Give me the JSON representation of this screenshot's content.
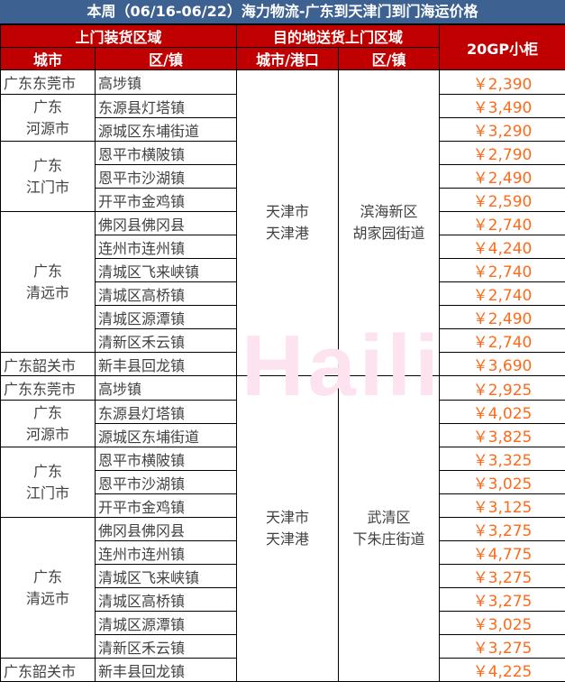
{
  "title": "本周（06/16-06/22）海力物流-广东到天津门到门海运价格",
  "headers": {
    "pickup": "上门装货区域",
    "delivery": "目的地送货上门区域",
    "price": "20GP小柜",
    "city": "城市",
    "district": "区/镇",
    "dest_city": "城市/港口",
    "dest_district": "区/镇"
  },
  "watermark": "Haili",
  "sections": [
    {
      "dest_city": "天津市\n天津港",
      "dest_district": "滨海新区\n胡家园街道",
      "groups": [
        {
          "city": "广东东莞市",
          "rows": [
            {
              "district": "高埗镇",
              "price": "￥2,390"
            }
          ]
        },
        {
          "city": "广东\n河源市",
          "rows": [
            {
              "district": "东源县灯塔镇",
              "price": "￥3,490"
            },
            {
              "district": "源城区东埔街道",
              "price": "￥3,290"
            }
          ]
        },
        {
          "city": "广东\n江门市",
          "rows": [
            {
              "district": "恩平市横陂镇",
              "price": "￥2,790"
            },
            {
              "district": "恩平市沙湖镇",
              "price": "￥2,490"
            },
            {
              "district": "开平市金鸡镇",
              "price": "￥2,590"
            }
          ]
        },
        {
          "city": "广东\n清远市",
          "rows": [
            {
              "district": "佛冈县佛冈县",
              "price": "￥2,740"
            },
            {
              "district": "连州市连州镇",
              "price": "￥4,240"
            },
            {
              "district": "清城区飞来峡镇",
              "price": "￥2,740"
            },
            {
              "district": "清城区高桥镇",
              "price": "￥2,740"
            },
            {
              "district": "清城区源潭镇",
              "price": "￥2,490"
            },
            {
              "district": "清新区禾云镇",
              "price": "￥2,740"
            }
          ]
        },
        {
          "city": "广东韶关市",
          "rows": [
            {
              "district": "新丰县回龙镇",
              "price": "￥3,690"
            }
          ]
        }
      ]
    },
    {
      "dest_city": "天津市\n天津港",
      "dest_district": "武清区\n下朱庄街道",
      "groups": [
        {
          "city": "广东东莞市",
          "rows": [
            {
              "district": "高埗镇",
              "price": "￥2,925"
            }
          ]
        },
        {
          "city": "广东\n河源市",
          "rows": [
            {
              "district": "东源县灯塔镇",
              "price": "￥4,025"
            },
            {
              "district": "源城区东埔街道",
              "price": "￥3,825"
            }
          ]
        },
        {
          "city": "广东\n江门市",
          "rows": [
            {
              "district": "恩平市横陂镇",
              "price": "￥3,325"
            },
            {
              "district": "恩平市沙湖镇",
              "price": "￥3,025"
            },
            {
              "district": "开平市金鸡镇",
              "price": "￥3,125"
            }
          ]
        },
        {
          "city": "广东\n清远市",
          "rows": [
            {
              "district": "佛冈县佛冈县",
              "price": "￥3,275"
            },
            {
              "district": "连州市连州镇",
              "price": "￥4,775"
            },
            {
              "district": "清城区飞来峡镇",
              "price": "￥3,275"
            },
            {
              "district": "清城区高桥镇",
              "price": "￥3,275"
            },
            {
              "district": "清城区源潭镇",
              "price": "￥3,025"
            },
            {
              "district": "清新区禾云镇",
              "price": "￥3,275"
            }
          ]
        },
        {
          "city": "广东韶关市",
          "rows": [
            {
              "district": "新丰县回龙镇",
              "price": "￥4,225"
            }
          ]
        }
      ]
    }
  ]
}
